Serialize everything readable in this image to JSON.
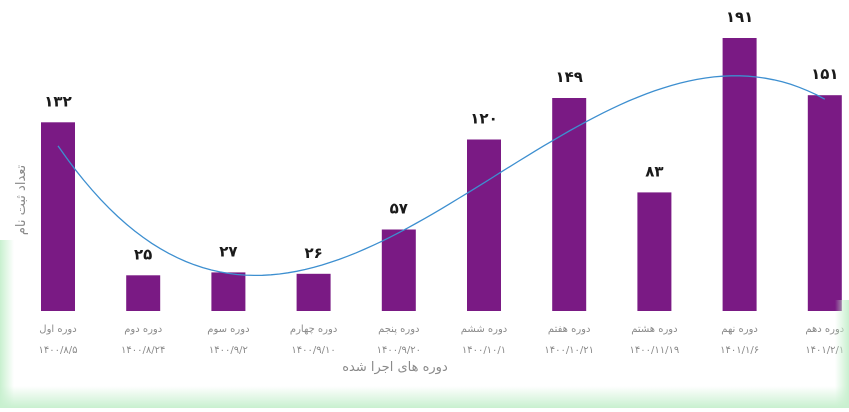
{
  "chart_data": {
    "type": "bar",
    "ylabel": "تعداد ثبت نام",
    "xlabel": "دوره های اجرا شده",
    "ylim": [
      0,
      191
    ],
    "grid": false,
    "categories": [
      {
        "name": "دوره اول",
        "date": "۱۴۰۰/۸/۵",
        "value_label": "۱۳۲"
      },
      {
        "name": "دوره دوم",
        "date": "۱۴۰۰/۸/۲۴",
        "value_label": "۲۵"
      },
      {
        "name": "دوره سوم",
        "date": "۱۴۰۰/۹/۲",
        "value_label": "۲۷"
      },
      {
        "name": "دوره چهارم",
        "date": "۱۴۰۰/۹/۱۰",
        "value_label": "۲۶"
      },
      {
        "name": "دوره پنجم",
        "date": "۱۴۰۰/۹/۲۰",
        "value_label": "۵۷"
      },
      {
        "name": "دوره ششم",
        "date": "۱۴۰۰/۱۰/۱",
        "value_label": "۱۲۰"
      },
      {
        "name": "دوره هفتم",
        "date": "۱۴۰۰/۱۰/۲۱",
        "value_label": "۱۴۹"
      },
      {
        "name": "دوره هشتم",
        "date": "۱۴۰۰/۱۱/۱۹",
        "value_label": "۸۳"
      },
      {
        "name": "دوره نهم",
        "date": "۱۴۰۱/۱/۶",
        "value_label": "۱۹۱"
      },
      {
        "name": "دوره دهم",
        "date": "۱۴۰۱/۲/۱",
        "value_label": "۱۵۱"
      }
    ],
    "values": [
      132,
      25,
      27,
      26,
      57,
      120,
      149,
      83,
      191,
      151
    ],
    "trendline": true,
    "colors": {
      "bar": "#7a1a84",
      "trendline": "#3d8fd0",
      "label": "#1a1a1a",
      "axis_text": "#8a8a8a",
      "edge_accent": "#c8f0cf"
    }
  }
}
